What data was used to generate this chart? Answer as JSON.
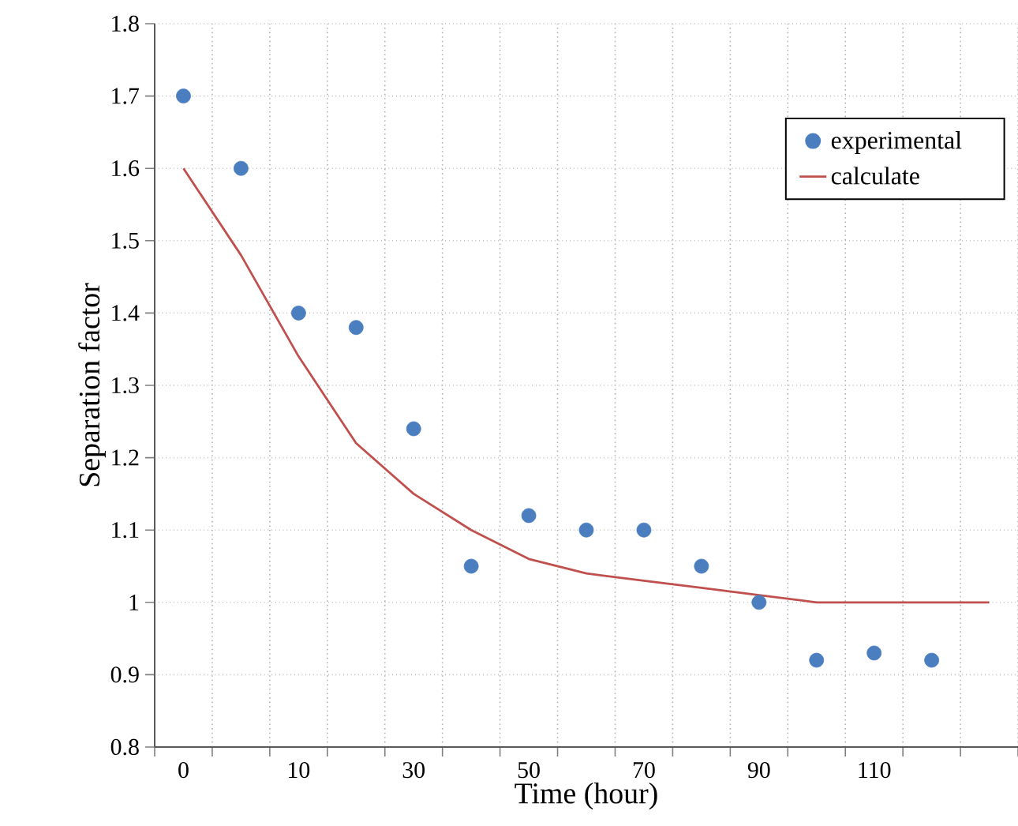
{
  "chart_data": {
    "type": "line",
    "xlabel": "Time (hour)",
    "ylabel": "Separation  factor",
    "categories": [
      "0",
      null,
      "10",
      null,
      "30",
      null,
      "50",
      null,
      "70",
      null,
      "90",
      null,
      "110",
      null,
      null
    ],
    "series": [
      {
        "name": "experimental",
        "type": "scatter",
        "color": "#4a7ebf",
        "marker": "circle",
        "values": [
          1.7,
          1.6,
          1.4,
          1.38,
          1.24,
          1.05,
          1.12,
          1.1,
          1.1,
          1.05,
          1.0,
          0.92,
          0.93,
          0.92,
          null
        ]
      },
      {
        "name": "calculate",
        "color": "#c0504d",
        "marker": "none",
        "line_style": "solid",
        "values": [
          1.6,
          1.48,
          1.34,
          1.22,
          1.15,
          1.1,
          1.06,
          1.04,
          1.03,
          1.02,
          1.01,
          1.0,
          1.0,
          1.0,
          1.0
        ]
      }
    ],
    "ylim": [
      0.8,
      1.8
    ],
    "yticks": [
      0.8,
      0.9,
      1,
      1.1,
      1.2,
      1.3,
      1.4,
      1.5,
      1.6,
      1.7,
      1.8
    ],
    "grid": true,
    "legend": "top right"
  }
}
